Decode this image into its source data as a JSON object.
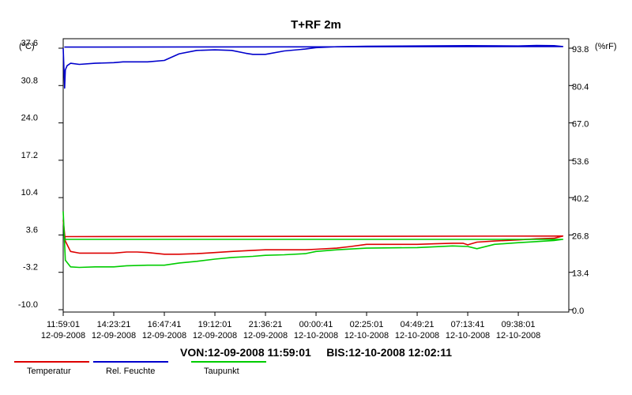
{
  "chart_data": {
    "type": "line",
    "title": "T+RF 2m",
    "y_left_unit": "(°C)",
    "y_right_unit": "(%rF)",
    "y_left_ticks": [
      "37.6",
      "30.8",
      "24.0",
      "17.2",
      "10.4",
      "3.6",
      "-3.2",
      "-10.0"
    ],
    "y_right_ticks": [
      "93.8",
      "80.4",
      "67.0",
      "53.6",
      "40.2",
      "26.8",
      "13.4",
      "0.0"
    ],
    "y_left_range": [
      -10.0,
      37.6
    ],
    "y_right_range": [
      0.0,
      93.8
    ],
    "x_ticks": [
      {
        "time": "11:59:01",
        "date": "12-09-2008"
      },
      {
        "time": "14:23:21",
        "date": "12-09-2008"
      },
      {
        "time": "16:47:41",
        "date": "12-09-2008"
      },
      {
        "time": "19:12:01",
        "date": "12-09-2008"
      },
      {
        "time": "21:36:21",
        "date": "12-09-2008"
      },
      {
        "time": "00:00:41",
        "date": "12-10-2008"
      },
      {
        "time": "02:25:01",
        "date": "12-10-2008"
      },
      {
        "time": "04:49:21",
        "date": "12-10-2008"
      },
      {
        "time": "07:13:41",
        "date": "12-10-2008"
      },
      {
        "time": "09:38:01",
        "date": "12-10-2008"
      }
    ],
    "range_label": "VON:12-09-2008 11:59:01     BIS:12-10-2008 12:02:11",
    "grid": false,
    "legend_position": "bottom",
    "series": [
      {
        "name": "Temperatur",
        "axis": "left",
        "color": "#dd0000",
        "x": [
          "11:59:01",
          "12:05",
          "12:20",
          "12:45",
          "13:30",
          "14:23:21",
          "15:00",
          "15:30",
          "16:00",
          "16:47:41",
          "17:30",
          "18:20",
          "19:12:01",
          "20:00",
          "21:00",
          "21:36:21",
          "22:30",
          "23:30",
          "00:00:41",
          "01:00",
          "01:40",
          "02:25:01",
          "03:15",
          "04:00",
          "04:49:21",
          "05:40",
          "06:30",
          "07:00",
          "07:13:41",
          "07:40",
          "08:30",
          "09:38:01",
          "10:30",
          "11:20",
          "11:45",
          "12:02:11"
        ],
        "values": [
          6.3,
          2.5,
          0.6,
          0.3,
          0.3,
          0.3,
          0.5,
          0.5,
          0.4,
          0.1,
          0.1,
          0.2,
          0.4,
          0.6,
          0.8,
          0.9,
          0.9,
          0.9,
          1.0,
          1.2,
          1.5,
          1.9,
          1.9,
          1.9,
          1.9,
          2.0,
          2.1,
          2.1,
          1.8,
          2.3,
          2.5,
          2.7,
          2.9,
          3.0,
          3.4,
          3.3
        ]
      },
      {
        "name": "Rel. Feuchte",
        "axis": "right",
        "color": "#0000cc",
        "x": [
          "11:59:01",
          "12:03",
          "12:05",
          "12:10",
          "12:20",
          "12:45",
          "13:30",
          "14:23:21",
          "14:50",
          "15:30",
          "16:00",
          "16:47:41",
          "17:30",
          "18:20",
          "19:12:01",
          "20:00",
          "20:40",
          "21:00",
          "21:36:21",
          "22:30",
          "23:30",
          "00:00:41",
          "01:00",
          "02:25:01",
          "04:49:21",
          "07:13:41",
          "09:38:01",
          "10:30",
          "11:20",
          "11:45",
          "12:02:11"
        ],
        "values": [
          93.8,
          79.5,
          86.0,
          87.5,
          88.4,
          88.0,
          88.4,
          88.6,
          88.9,
          88.9,
          88.9,
          89.4,
          91.8,
          93.0,
          93.2,
          93.0,
          92.0,
          91.6,
          91.6,
          92.8,
          93.5,
          94.0,
          94.3,
          94.5,
          94.6,
          94.7,
          94.6,
          94.8,
          94.7,
          94.4,
          94.2
        ]
      },
      {
        "name": "Taupunkt",
        "axis": "left",
        "color": "#00cc00",
        "x": [
          "11:59:01",
          "12:05",
          "12:20",
          "12:45",
          "13:30",
          "14:23:21",
          "15:00",
          "16:00",
          "16:47:41",
          "17:30",
          "18:20",
          "19:12:01",
          "20:00",
          "21:00",
          "21:36:21",
          "22:30",
          "23:30",
          "00:00:41",
          "01:00",
          "02:25:01",
          "04:49:21",
          "06:30",
          "07:13:41",
          "07:40",
          "08:30",
          "09:38:01",
          "10:30",
          "11:20",
          "11:45",
          "12:02:11"
        ],
        "values": [
          7.9,
          -1.0,
          -2.2,
          -2.3,
          -2.2,
          -2.2,
          -2.0,
          -1.9,
          -1.9,
          -1.5,
          -1.2,
          -0.8,
          -0.5,
          -0.3,
          -0.1,
          0.0,
          0.2,
          0.6,
          0.9,
          1.2,
          1.3,
          1.6,
          1.5,
          1.1,
          1.9,
          2.2,
          2.4,
          2.6,
          2.8,
          2.8
        ]
      }
    ]
  }
}
